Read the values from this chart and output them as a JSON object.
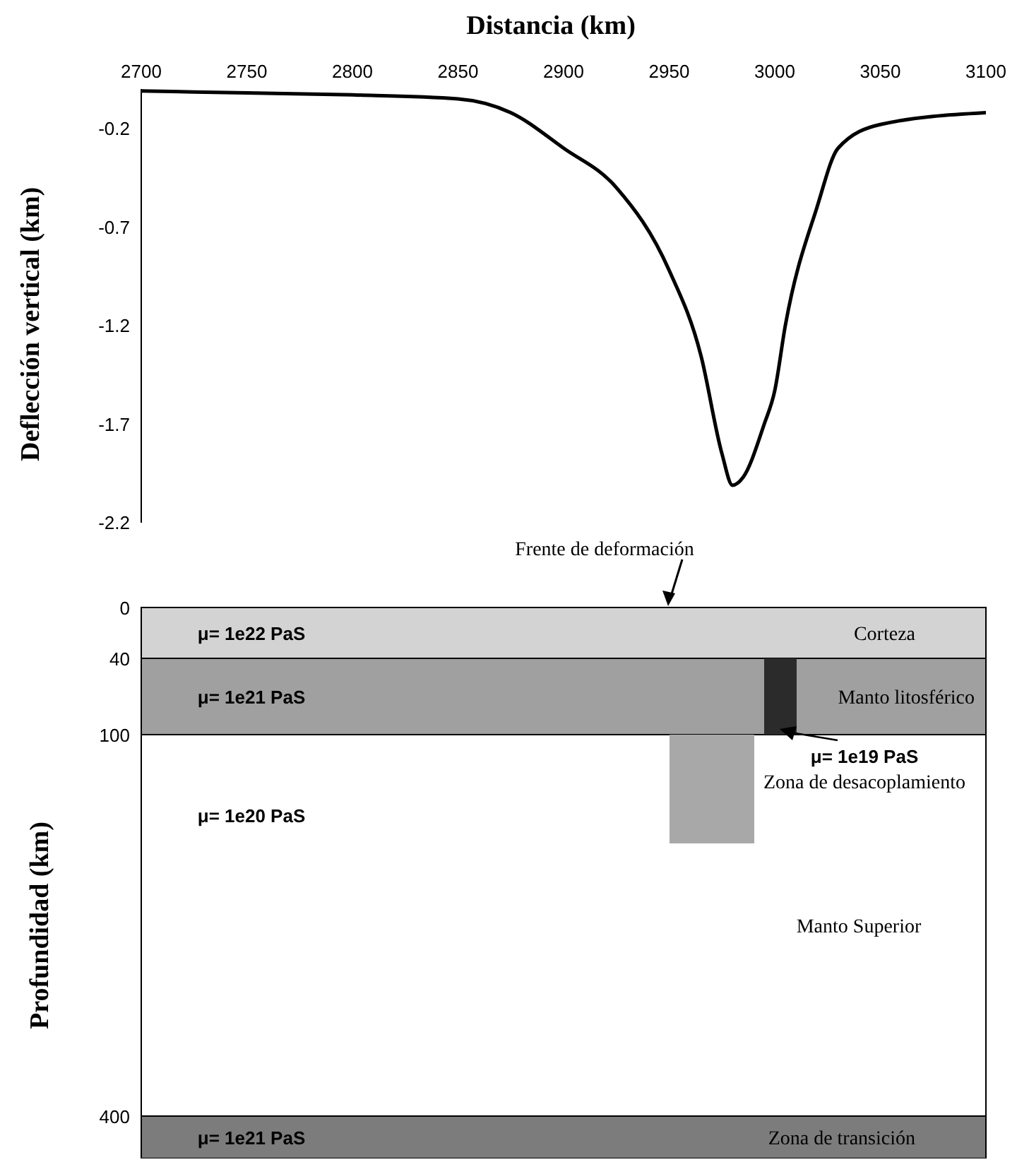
{
  "chart_data": [
    {
      "type": "line",
      "xlabel": "Distancia (km)",
      "ylabel": "Deflección vertical (km)",
      "xlim": [
        2700,
        3100
      ],
      "xticks": [
        2700,
        2750,
        2800,
        2850,
        2900,
        2950,
        3000,
        3050,
        3100
      ],
      "ylim": [
        -2.2,
        0
      ],
      "yticks": [
        -0.2,
        -0.7,
        -1.2,
        -1.7,
        -2.2
      ],
      "grid": false,
      "legend": false,
      "marker": "none",
      "line_style": "solid",
      "series": [
        {
          "color": "#000000",
          "x": [
            2700,
            2750,
            2800,
            2850,
            2875,
            2900,
            2925,
            2950,
            2965,
            2975,
            2980,
            2985,
            2995,
            3000,
            3005,
            3020,
            3030,
            3050,
            3100
          ],
          "values": [
            -0.01,
            -0.02,
            -0.03,
            -0.05,
            -0.12,
            -0.3,
            -0.5,
            -0.92,
            -1.35,
            -1.85,
            -2.01,
            -1.97,
            -1.7,
            -1.53,
            -1.2,
            -0.6,
            -0.3,
            -0.18,
            -0.12
          ]
        }
      ]
    },
    {
      "type": "other",
      "ylabel": "Profundidad (km)",
      "annotations": [
        "0",
        "40",
        "100",
        "400",
        "Frente de deformación",
        "μ= 1e22 PaS",
        "Corteza",
        "μ= 1e21 PaS",
        "Manto litosférico",
        "μ= 1e20 PaS",
        "μ= 1e19 PaS",
        "Zona de desacoplamiento",
        "Manto Superior",
        "μ= 1e21 PaS",
        "Zona de transición"
      ]
    }
  ]
}
